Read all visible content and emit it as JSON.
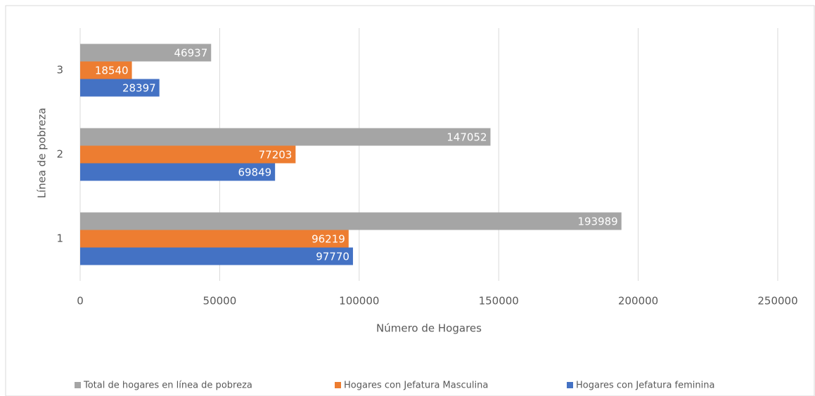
{
  "chart_data": {
    "type": "bar",
    "orientation": "horizontal",
    "xlabel": "Número de Hogares",
    "ylabel": "Línea de pobreza",
    "categories": [
      "1",
      "2",
      "3"
    ],
    "series": [
      {
        "name": "Hogares con Jefatura feminina",
        "color": "#4472c4",
        "values": [
          97770,
          69849,
          28397
        ]
      },
      {
        "name": "Hogares con Jefatura Masculina",
        "color": "#ed7d31",
        "values": [
          96219,
          77203,
          18540
        ]
      },
      {
        "name": "Total de hogares en línea de pobreza",
        "color": "#a5a5a5",
        "values": [
          193989,
          147052,
          46937
        ]
      }
    ],
    "xlim": [
      0,
      250000
    ],
    "xticks": [
      0,
      50000,
      100000,
      150000,
      200000,
      250000
    ],
    "grid": true
  }
}
